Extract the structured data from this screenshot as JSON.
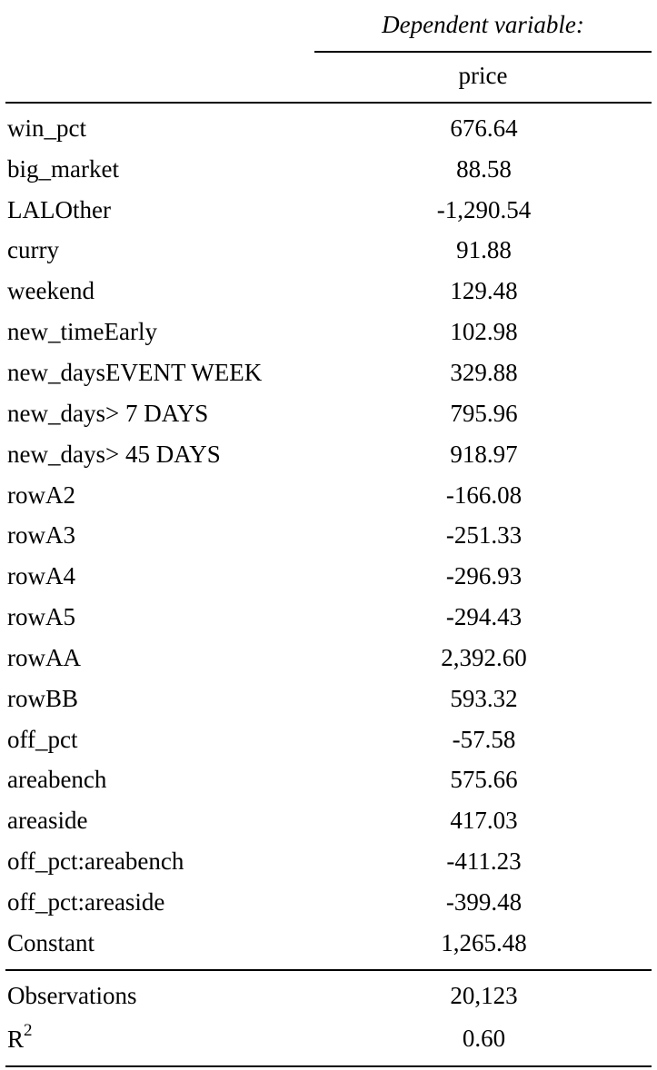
{
  "header": {
    "dependent_variable_label": "Dependent variable:",
    "variable_name": "price"
  },
  "coefficients": [
    {
      "name": "win_pct",
      "value": "676.64"
    },
    {
      "name": "big_market",
      "value": "88.58"
    },
    {
      "name": "LALOther",
      "value": "-1,290.54"
    },
    {
      "name": "curry",
      "value": "91.88"
    },
    {
      "name": "weekend",
      "value": "129.48"
    },
    {
      "name": "new_timeEarly",
      "value": "102.98"
    },
    {
      "name": "new_daysEVENT WEEK",
      "value": "329.88"
    },
    {
      "name": "new_days> 7 DAYS",
      "value": "795.96"
    },
    {
      "name": "new_days> 45 DAYS",
      "value": "918.97"
    },
    {
      "name": "rowA2",
      "value": "-166.08"
    },
    {
      "name": "rowA3",
      "value": "-251.33"
    },
    {
      "name": "rowA4",
      "value": "-296.93"
    },
    {
      "name": "rowA5",
      "value": "-294.43"
    },
    {
      "name": "rowAA",
      "value": "2,392.60"
    },
    {
      "name": "rowBB",
      "value": "593.32"
    },
    {
      "name": "off_pct",
      "value": "-57.58"
    },
    {
      "name": "areabench",
      "value": "575.66"
    },
    {
      "name": "areaside",
      "value": "417.03"
    },
    {
      "name": "off_pct:areabench",
      "value": "-411.23"
    },
    {
      "name": "off_pct:areaside",
      "value": "-399.48"
    },
    {
      "name": "Constant",
      "value": "1,265.48"
    }
  ],
  "stats": {
    "observations_label": "Observations",
    "observations_value": "20,123",
    "r2_label": "R",
    "r2_superscript": "2",
    "r2_value": "0.60"
  }
}
